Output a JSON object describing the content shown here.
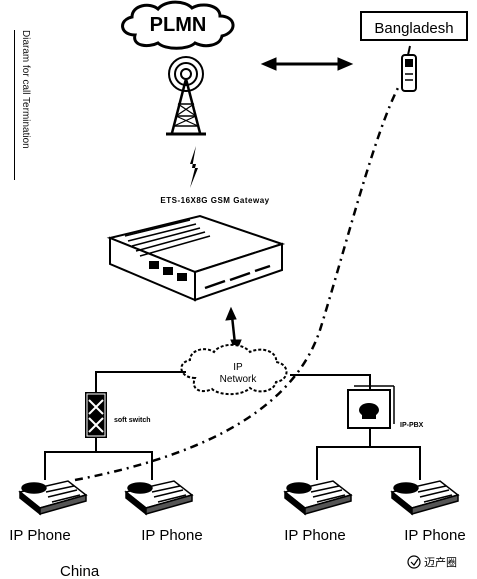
{
  "title_vertical": "Diaram for call Termination",
  "cloud_plmn": "PLMN",
  "box_bangladesh": "Bangladesh",
  "gateway_label": "ETS-16X8G GSM Gateway",
  "cloud_ip_line1": "IP",
  "cloud_ip_line2": "Network",
  "softswitch_label": "soft switch",
  "ippbx_label": "IP-PBX",
  "phones": [
    "IP Phone",
    "IP Phone",
    "IP Phone",
    "IP Phone"
  ],
  "china_label": "China",
  "watermark": "迈产圈",
  "colors": {
    "ink": "#000000",
    "bg": "#ffffff"
  }
}
